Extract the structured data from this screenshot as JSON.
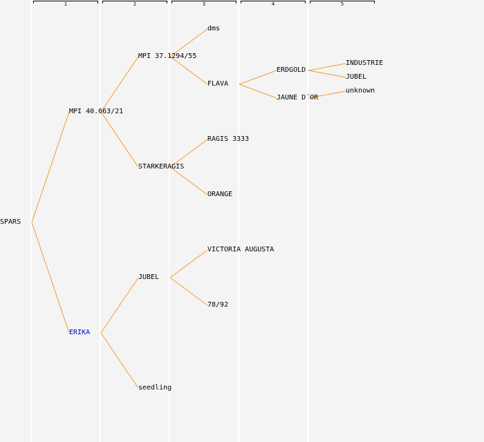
{
  "generations": [
    "1",
    "2",
    "3",
    "4",
    "5"
  ],
  "colors": {
    "line": "#f59b2e",
    "link": "#0000cc",
    "text": "#000000"
  },
  "tree": {
    "root": "SPARS",
    "nodes": [
      {
        "id": "n1",
        "label": "MPI 40.663/21",
        "gen": 1,
        "parent": "root"
      },
      {
        "id": "n2",
        "label": "ERIKA",
        "gen": 1,
        "parent": "root",
        "link": true
      },
      {
        "id": "n3",
        "label": "MPI 37.1294/55",
        "gen": 2,
        "parent": "n1"
      },
      {
        "id": "n4",
        "label": "STARKERAGIS",
        "gen": 2,
        "parent": "n1"
      },
      {
        "id": "n5",
        "label": "JUBEL",
        "gen": 2,
        "parent": "n2"
      },
      {
        "id": "n6",
        "label": "seedling",
        "gen": 2,
        "parent": "n2"
      },
      {
        "id": "n7",
        "label": "dms",
        "gen": 3,
        "parent": "n3"
      },
      {
        "id": "n8",
        "label": "FLAVA",
        "gen": 3,
        "parent": "n3"
      },
      {
        "id": "n9",
        "label": "RAGIS 3333",
        "gen": 3,
        "parent": "n4"
      },
      {
        "id": "n10",
        "label": "ORANGE",
        "gen": 3,
        "parent": "n4"
      },
      {
        "id": "n11",
        "label": "VICTORIA AUGUSTA",
        "gen": 3,
        "parent": "n5"
      },
      {
        "id": "n12",
        "label": "78/92",
        "gen": 3,
        "parent": "n5"
      },
      {
        "id": "n13",
        "label": "ERDGOLD",
        "gen": 4,
        "parent": "n8"
      },
      {
        "id": "n14",
        "label": "JAUNE D´OR",
        "gen": 4,
        "parent": "n8"
      },
      {
        "id": "n15",
        "label": "INDUSTRIE",
        "gen": 5,
        "parent": "n13"
      },
      {
        "id": "n16",
        "label": "JUBEL",
        "gen": 5,
        "parent": "n13"
      },
      {
        "id": "n17",
        "label": "unknown",
        "gen": 5,
        "parent": "n14"
      }
    ]
  }
}
